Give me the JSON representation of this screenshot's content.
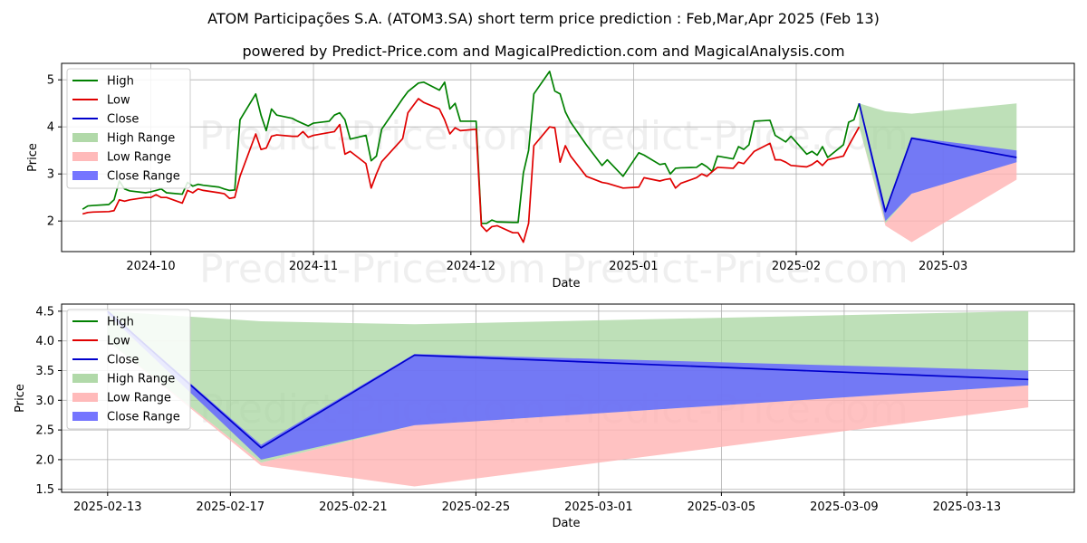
{
  "title": "ATOM Participações S.A. (ATOM3.SA) short term price prediction : Feb,Mar,Apr 2025 (Feb 13)",
  "subtitle": "powered by Predict-Price.com and MagicalPrediction.com and MagicalAnalysis.com",
  "watermark": "Predict-Price.com",
  "colors": {
    "high": "#008000",
    "low": "#e00000",
    "close": "#0000cc",
    "high_range": "#a8d5a0",
    "low_range": "#ffb3b3",
    "close_range": "#6666ff"
  },
  "chart_data": [
    {
      "type": "line",
      "name": "history",
      "xlabel": "Date",
      "ylabel": "Price",
      "ylim": [
        1.35,
        5.35
      ],
      "yticks": [
        2,
        3,
        4,
        5
      ],
      "xticks": [
        {
          "date": "2024-10-01",
          "label": "2024-10"
        },
        {
          "date": "2024-11-01",
          "label": "2024-11"
        },
        {
          "date": "2024-12-01",
          "label": "2024-12"
        },
        {
          "date": "2025-01-01",
          "label": "2025-01"
        },
        {
          "date": "2025-02-01",
          "label": "2025-02"
        },
        {
          "date": "2025-03-01",
          "label": "2025-03"
        }
      ],
      "xlim": [
        "2024-09-14",
        "2025-03-26"
      ],
      "grid": true,
      "legend_position": "top-left",
      "legend": [
        "High",
        "Low",
        "Close",
        "High Range",
        "Low Range",
        "Close Range"
      ],
      "series": [
        {
          "name": "High",
          "x": [
            "2024-09-18",
            "2024-09-19",
            "2024-09-20",
            "2024-09-23",
            "2024-09-24",
            "2024-09-25",
            "2024-09-26",
            "2024-09-27",
            "2024-09-30",
            "2024-10-01",
            "2024-10-02",
            "2024-10-03",
            "2024-10-04",
            "2024-10-07",
            "2024-10-08",
            "2024-10-09",
            "2024-10-10",
            "2024-10-11",
            "2024-10-14",
            "2024-10-15",
            "2024-10-16",
            "2024-10-17",
            "2024-10-18",
            "2024-10-21",
            "2024-10-22",
            "2024-10-23",
            "2024-10-24",
            "2024-10-25",
            "2024-10-28",
            "2024-10-29",
            "2024-10-30",
            "2024-10-31",
            "2024-11-01",
            "2024-11-04",
            "2024-11-05",
            "2024-11-06",
            "2024-11-07",
            "2024-11-08",
            "2024-11-11",
            "2024-11-12",
            "2024-11-13",
            "2024-11-14",
            "2024-11-18",
            "2024-11-19",
            "2024-11-21",
            "2024-11-22",
            "2024-11-25",
            "2024-11-26",
            "2024-11-27",
            "2024-11-28",
            "2024-11-29",
            "2024-12-02",
            "2024-12-03",
            "2024-12-04",
            "2024-12-05",
            "2024-12-06",
            "2024-12-09",
            "2024-12-10",
            "2024-12-11",
            "2024-12-12",
            "2024-12-13",
            "2024-12-16",
            "2024-12-17",
            "2024-12-18",
            "2024-12-19",
            "2024-12-20",
            "2024-12-23",
            "2024-12-26",
            "2024-12-27",
            "2024-12-30",
            "2025-01-02",
            "2025-01-03",
            "2025-01-06",
            "2025-01-07",
            "2025-01-08",
            "2025-01-09",
            "2025-01-10",
            "2025-01-13",
            "2025-01-14",
            "2025-01-15",
            "2025-01-16",
            "2025-01-17",
            "2025-01-20",
            "2025-01-21",
            "2025-01-22",
            "2025-01-23",
            "2025-01-24",
            "2025-01-27",
            "2025-01-28",
            "2025-01-29",
            "2025-01-30",
            "2025-01-31",
            "2025-02-03",
            "2025-02-04",
            "2025-02-05",
            "2025-02-06",
            "2025-02-07",
            "2025-02-10",
            "2025-02-11",
            "2025-02-12",
            "2025-02-13"
          ],
          "values": [
            2.25,
            2.32,
            2.33,
            2.35,
            2.45,
            2.85,
            2.68,
            2.64,
            2.6,
            2.62,
            2.65,
            2.68,
            2.6,
            2.57,
            2.82,
            2.74,
            2.78,
            2.76,
            2.72,
            2.68,
            2.65,
            2.66,
            4.15,
            4.7,
            4.25,
            3.92,
            4.38,
            4.25,
            4.18,
            4.12,
            4.07,
            4.02,
            4.08,
            4.12,
            4.25,
            4.3,
            4.15,
            3.74,
            3.82,
            3.28,
            3.38,
            3.95,
            4.6,
            4.75,
            4.93,
            4.95,
            4.78,
            4.95,
            4.38,
            4.5,
            4.12,
            4.12,
            1.95,
            1.95,
            2.02,
            1.98,
            1.97,
            1.97,
            3.02,
            3.5,
            4.7,
            5.18,
            4.76,
            4.7,
            4.32,
            4.1,
            3.62,
            3.18,
            3.3,
            2.95,
            3.45,
            3.4,
            3.2,
            3.22,
            3.0,
            3.12,
            3.13,
            3.14,
            3.22,
            3.15,
            3.05,
            3.38,
            3.32,
            3.58,
            3.52,
            3.62,
            4.12,
            4.14,
            3.82,
            3.75,
            3.68,
            3.8,
            3.42,
            3.48,
            3.4,
            3.58,
            3.35,
            3.62,
            4.1,
            4.15,
            4.5
          ]
        },
        {
          "name": "Low",
          "x": [
            "2024-09-18",
            "2024-09-19",
            "2024-09-20",
            "2024-09-23",
            "2024-09-24",
            "2024-09-25",
            "2024-09-26",
            "2024-09-27",
            "2024-09-30",
            "2024-10-01",
            "2024-10-02",
            "2024-10-03",
            "2024-10-04",
            "2024-10-07",
            "2024-10-08",
            "2024-10-09",
            "2024-10-10",
            "2024-10-11",
            "2024-10-14",
            "2024-10-15",
            "2024-10-16",
            "2024-10-17",
            "2024-10-18",
            "2024-10-21",
            "2024-10-22",
            "2024-10-23",
            "2024-10-24",
            "2024-10-25",
            "2024-10-28",
            "2024-10-29",
            "2024-10-30",
            "2024-10-31",
            "2024-11-01",
            "2024-11-04",
            "2024-11-05",
            "2024-11-06",
            "2024-11-07",
            "2024-11-08",
            "2024-11-11",
            "2024-11-12",
            "2024-11-13",
            "2024-11-14",
            "2024-11-18",
            "2024-11-19",
            "2024-11-21",
            "2024-11-22",
            "2024-11-25",
            "2024-11-26",
            "2024-11-27",
            "2024-11-28",
            "2024-11-29",
            "2024-12-02",
            "2024-12-03",
            "2024-12-04",
            "2024-12-05",
            "2024-12-06",
            "2024-12-09",
            "2024-12-10",
            "2024-12-11",
            "2024-12-12",
            "2024-12-13",
            "2024-12-16",
            "2024-12-17",
            "2024-12-18",
            "2024-12-19",
            "2024-12-20",
            "2024-12-23",
            "2024-12-26",
            "2024-12-27",
            "2024-12-30",
            "2025-01-02",
            "2025-01-03",
            "2025-01-06",
            "2025-01-07",
            "2025-01-08",
            "2025-01-09",
            "2025-01-10",
            "2025-01-13",
            "2025-01-14",
            "2025-01-15",
            "2025-01-16",
            "2025-01-17",
            "2025-01-20",
            "2025-01-21",
            "2025-01-22",
            "2025-01-23",
            "2025-01-24",
            "2025-01-27",
            "2025-01-28",
            "2025-01-29",
            "2025-01-30",
            "2025-01-31",
            "2025-02-03",
            "2025-02-04",
            "2025-02-05",
            "2025-02-06",
            "2025-02-07",
            "2025-02-10",
            "2025-02-11",
            "2025-02-12",
            "2025-02-13"
          ],
          "values": [
            2.15,
            2.18,
            2.19,
            2.2,
            2.22,
            2.45,
            2.42,
            2.45,
            2.5,
            2.5,
            2.56,
            2.5,
            2.5,
            2.38,
            2.65,
            2.6,
            2.68,
            2.65,
            2.6,
            2.58,
            2.48,
            2.5,
            2.95,
            3.85,
            3.52,
            3.55,
            3.8,
            3.83,
            3.8,
            3.8,
            3.9,
            3.78,
            3.82,
            3.88,
            3.9,
            4.05,
            3.42,
            3.48,
            3.22,
            2.7,
            3.0,
            3.26,
            3.75,
            4.3,
            4.6,
            4.52,
            4.38,
            4.15,
            3.85,
            3.98,
            3.92,
            3.95,
            1.9,
            1.78,
            1.88,
            1.9,
            1.75,
            1.75,
            1.55,
            1.95,
            3.6,
            4.0,
            3.98,
            3.25,
            3.6,
            3.38,
            2.95,
            2.82,
            2.8,
            2.7,
            2.72,
            2.92,
            2.85,
            2.88,
            2.9,
            2.7,
            2.8,
            2.92,
            3.0,
            2.95,
            3.05,
            3.14,
            3.12,
            3.25,
            3.22,
            3.35,
            3.48,
            3.65,
            3.3,
            3.3,
            3.25,
            3.18,
            3.15,
            3.2,
            3.28,
            3.18,
            3.3,
            3.38,
            3.6,
            3.8,
            4.0
          ]
        }
      ],
      "forecast": [
        {
          "date": "2025-02-13",
          "high": 4.5,
          "low": 4.0,
          "close": 4.5,
          "high_top": 4.5,
          "low_bottom": 4.0,
          "close_lo": 4.45,
          "close_hi": 4.5
        },
        {
          "date": "2025-02-18",
          "high": 2.22,
          "low": 1.95,
          "close": 2.2,
          "high_top": 4.33,
          "low_bottom": 1.9,
          "close_lo": 2.0,
          "close_hi": 2.25
        },
        {
          "date": "2025-02-23",
          "high": 3.78,
          "low": 2.58,
          "close": 3.76,
          "high_top": 4.28,
          "low_bottom": 1.55,
          "close_lo": 2.58,
          "close_hi": 3.78
        },
        {
          "date": "2025-03-15",
          "high": 3.5,
          "low": 3.25,
          "close": 3.35,
          "high_top": 4.5,
          "low_bottom": 2.88,
          "close_lo": 3.25,
          "close_hi": 3.5
        }
      ]
    },
    {
      "type": "line",
      "name": "forecast",
      "xlabel": "Date",
      "ylabel": "Price",
      "ylim": [
        1.45,
        4.62
      ],
      "yticks": [
        1.5,
        2.0,
        2.5,
        3.0,
        3.5,
        4.0,
        4.5
      ],
      "ytick_labels": [
        "1.5",
        "2.0",
        "2.5",
        "3.0",
        "3.5",
        "4.0",
        "4.5"
      ],
      "xticks": [
        {
          "date": "2025-02-13",
          "label": "2025-02-13"
        },
        {
          "date": "2025-02-17",
          "label": "2025-02-17"
        },
        {
          "date": "2025-02-21",
          "label": "2025-02-21"
        },
        {
          "date": "2025-02-25",
          "label": "2025-02-25"
        },
        {
          "date": "2025-03-01",
          "label": "2025-03-01"
        },
        {
          "date": "2025-03-05",
          "label": "2025-03-05"
        },
        {
          "date": "2025-03-09",
          "label": "2025-03-09"
        },
        {
          "date": "2025-03-13",
          "label": "2025-03-13"
        }
      ],
      "xlim": [
        "2025-02-11.5",
        "2025-03-16.5"
      ],
      "grid": true,
      "legend_position": "top-left",
      "legend": [
        "High",
        "Low",
        "Close",
        "High Range",
        "Low Range",
        "Close Range"
      ]
    }
  ]
}
